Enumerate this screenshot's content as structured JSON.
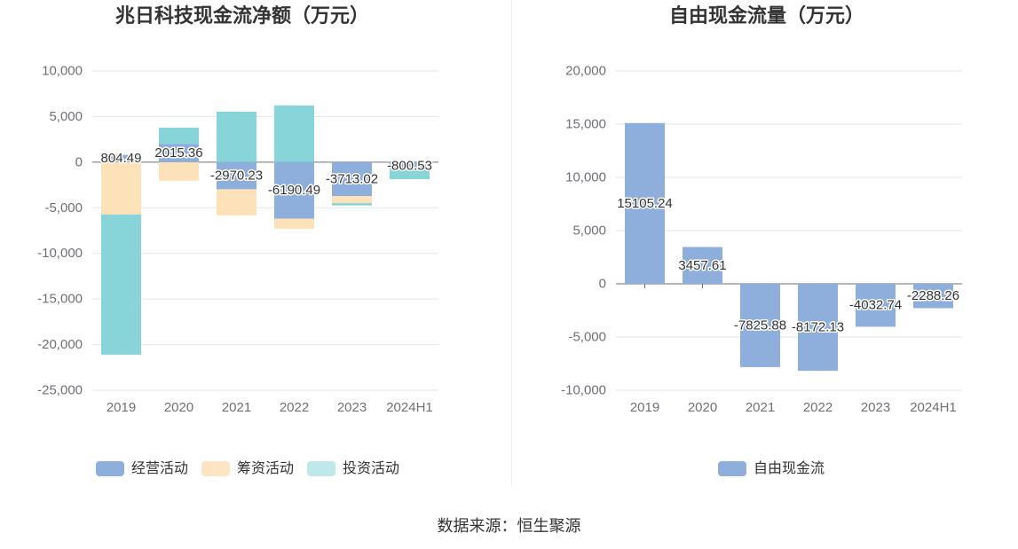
{
  "source": "数据来源：恒生聚源",
  "colors": {
    "axis_text": "#6e7079",
    "axis_line": "#6e7079",
    "grid_line": "#e0e6f1",
    "divider": "#eeeeee"
  },
  "chart_data": [
    {
      "type": "bar",
      "stacked": true,
      "title": "兆日科技现金流净额（万元）",
      "categories": [
        "2019",
        "2020",
        "2021",
        "2022",
        "2023",
        "2024H1"
      ],
      "ylim": [
        -25000,
        10000
      ],
      "yticks": [
        10000,
        5000,
        0,
        -5000,
        -10000,
        -15000,
        -20000,
        -25000
      ],
      "grid": true,
      "legend": "bottom",
      "series": [
        {
          "name": "经营活动",
          "color": "#8eaedc",
          "legend_color": "#8eaedc",
          "show_labels": true,
          "values": [
            804.49,
            2015.36,
            -2970.23,
            -6190.49,
            -3713.02,
            -800.53
          ]
        },
        {
          "name": "筹资活动",
          "color": "#fde2b9",
          "legend_color": "#fde5c4",
          "show_labels": false,
          "values": [
            -5740,
            -2040,
            -2860,
            -1100,
            -780,
            -40
          ]
        },
        {
          "name": "投资活动",
          "color": "#87d4d9",
          "legend_color": "#bfe8eb",
          "show_labels": false,
          "values": [
            -15360,
            1775,
            5540,
            6220,
            -250,
            -1020
          ]
        }
      ]
    },
    {
      "type": "bar",
      "stacked": false,
      "title": "自由现金流量（万元）",
      "categories": [
        "2019",
        "2020",
        "2021",
        "2022",
        "2023",
        "2024H1"
      ],
      "ylim": [
        -10000,
        20000
      ],
      "yticks": [
        20000,
        15000,
        10000,
        5000,
        0,
        -5000,
        -10000
      ],
      "grid": true,
      "legend": "bottom",
      "series": [
        {
          "name": "自由现金流",
          "color": "#8eaedc",
          "legend_color": "#8eaedc",
          "show_labels": true,
          "values": [
            15105.24,
            3457.61,
            -7825.88,
            -8172.13,
            -4032.74,
            -2288.26
          ]
        }
      ]
    }
  ]
}
